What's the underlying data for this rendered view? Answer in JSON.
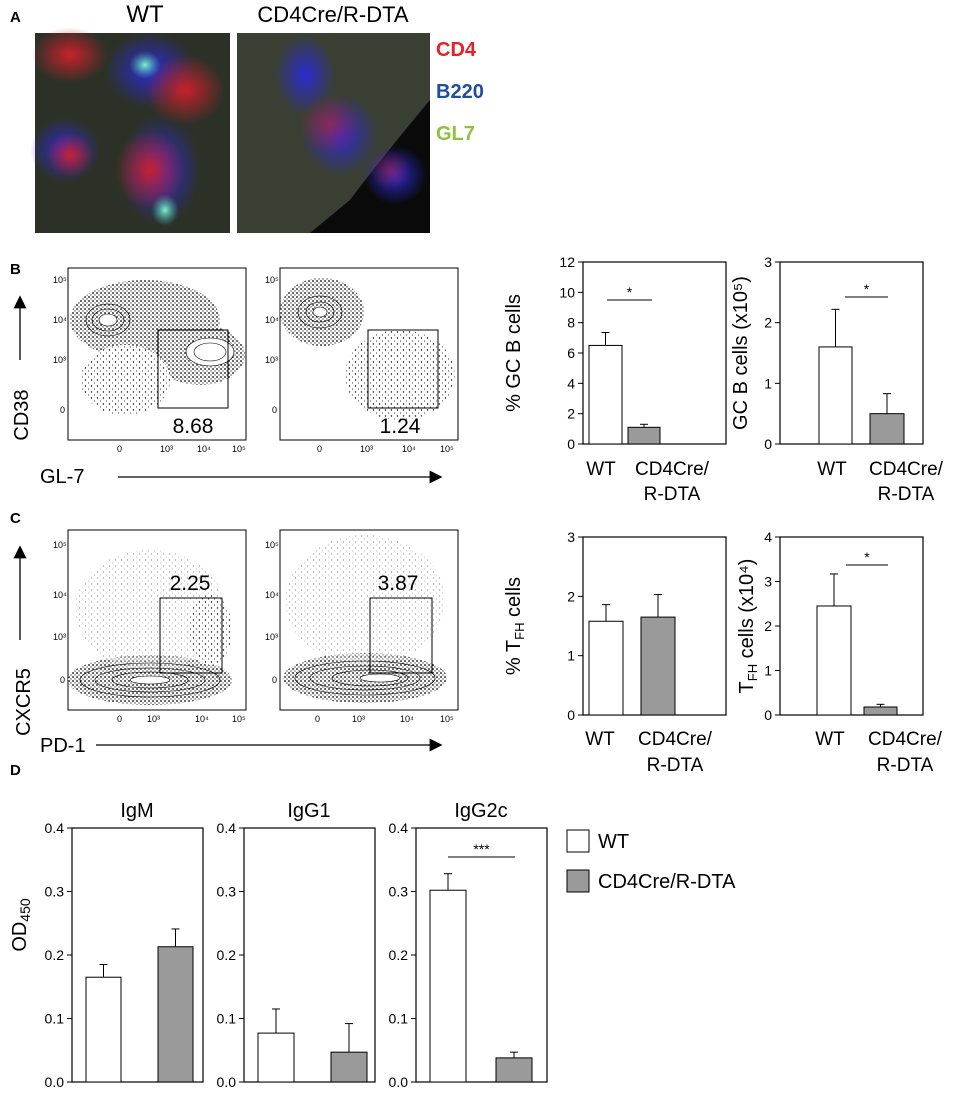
{
  "panel_labels": {
    "a": "A",
    "b": "B",
    "c": "C",
    "d": "D"
  },
  "micrographs": {
    "wt_title": "WT",
    "ko_title": "CD4Cre/R-DTA",
    "legend": [
      {
        "label": "CD4",
        "color": "#e8202a"
      },
      {
        "label": "B220",
        "color": "#1f4e9a"
      },
      {
        "label": "GL7",
        "color": "#8fc13e"
      }
    ]
  },
  "flow_b": {
    "y_axis_label": "CD38",
    "x_axis_label": "GL-7",
    "gate_wt": "8.68",
    "gate_ko": "1.24",
    "y_ticks": [
      "10⁵",
      "10⁴",
      "10³",
      "0"
    ],
    "x_ticks": [
      "0",
      "10³",
      "10⁴",
      "10⁵"
    ]
  },
  "flow_c": {
    "y_axis_label": "CXCR5",
    "x_axis_label": "PD-1",
    "gate_wt": "2.25",
    "gate_ko": "3.87",
    "y_ticks": [
      "10⁵",
      "10⁴",
      "10³",
      "0"
    ],
    "x_ticks": [
      "0",
      "10³",
      "10⁴",
      "10⁵"
    ]
  },
  "colors": {
    "wt": "#ffffff",
    "ko": "#9a9a9a",
    "axis": "#000000"
  },
  "chart_data": [
    {
      "id": "b1",
      "type": "bar",
      "categories": [
        "WT",
        "CD4Cre/\nR-DTA"
      ],
      "values": [
        6.5,
        1.1
      ],
      "errors": [
        0.85,
        0.2
      ],
      "ylabel": "% GC B cells",
      "ylim": [
        0,
        12
      ],
      "yticks": [
        0,
        2,
        4,
        6,
        8,
        10,
        12
      ],
      "significance": "*"
    },
    {
      "id": "b2",
      "type": "bar",
      "categories": [
        "WT",
        "CD4Cre/\nR-DTA"
      ],
      "values": [
        1.6,
        0.5
      ],
      "errors": [
        0.62,
        0.33
      ],
      "ylabel": "GC B cells (x10⁵)",
      "ylim": [
        0,
        3
      ],
      "yticks": [
        0,
        1,
        2,
        3
      ],
      "significance": "*"
    },
    {
      "id": "c1",
      "type": "bar",
      "categories": [
        "WT",
        "CD4Cre/\nR-DTA"
      ],
      "values": [
        1.58,
        1.65
      ],
      "errors": [
        0.28,
        0.38
      ],
      "ylabel": "% T_FH cells",
      "ylim": [
        0,
        3
      ],
      "yticks": [
        0,
        1,
        2,
        3
      ],
      "significance": ""
    },
    {
      "id": "c2",
      "type": "bar",
      "categories": [
        "WT",
        "CD4Cre/\nR-DTA"
      ],
      "values": [
        2.45,
        0.18
      ],
      "errors": [
        0.72,
        0.06
      ],
      "ylabel": "T_FH cells (x10⁴)",
      "ylim": [
        0,
        4
      ],
      "yticks": [
        0,
        1,
        2,
        3,
        4
      ],
      "significance": "*"
    },
    {
      "id": "d1",
      "type": "bar",
      "title": "IgM",
      "categories": [
        "WT",
        "CD4Cre/R-DTA"
      ],
      "values": [
        0.165,
        0.213
      ],
      "errors": [
        0.02,
        0.028
      ],
      "ylabel": "OD450",
      "ylim": [
        0,
        0.4
      ],
      "yticks": [
        0.0,
        0.1,
        0.2,
        0.3,
        0.4
      ],
      "significance": ""
    },
    {
      "id": "d2",
      "type": "bar",
      "title": "IgG1",
      "categories": [
        "WT",
        "CD4Cre/R-DTA"
      ],
      "values": [
        0.077,
        0.047
      ],
      "errors": [
        0.038,
        0.045
      ],
      "ylabel": "",
      "ylim": [
        0,
        0.4
      ],
      "yticks": [
        0.0,
        0.1,
        0.2,
        0.3,
        0.4
      ],
      "significance": ""
    },
    {
      "id": "d3",
      "type": "bar",
      "title": "IgG2c",
      "categories": [
        "WT",
        "CD4Cre/R-DTA"
      ],
      "values": [
        0.302,
        0.038
      ],
      "errors": [
        0.026,
        0.009
      ],
      "ylabel": "",
      "ylim": [
        0,
        0.4
      ],
      "yticks": [
        0.0,
        0.1,
        0.2,
        0.3,
        0.4
      ],
      "significance": "***"
    }
  ],
  "legend_d": [
    {
      "label": "WT",
      "key": "wt"
    },
    {
      "label": "CD4Cre/R-DTA",
      "key": "ko"
    }
  ]
}
